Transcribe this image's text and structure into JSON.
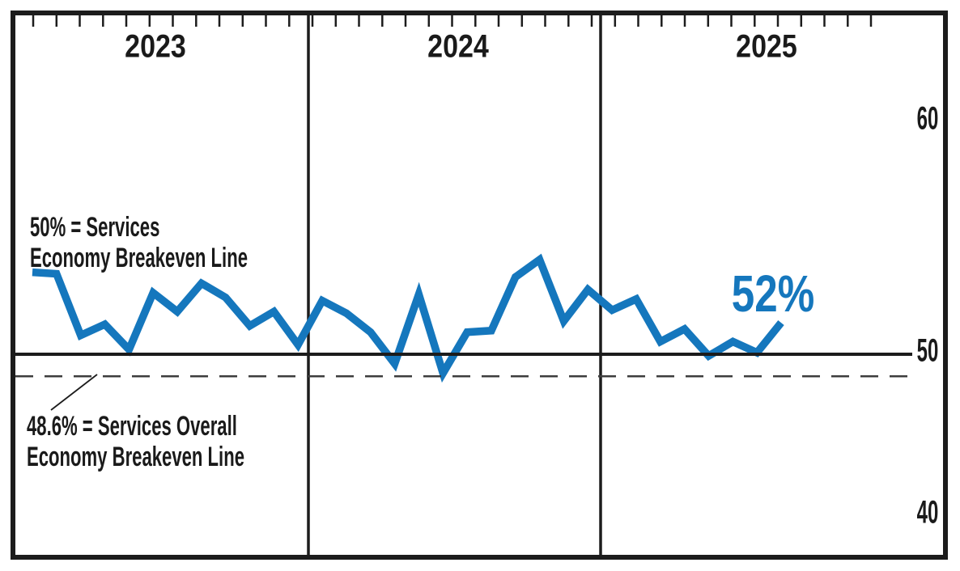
{
  "chart_data": {
    "type": "line",
    "title": "",
    "x": [
      "Jan 2023",
      "Feb 2023",
      "Mar 2023",
      "Apr 2023",
      "May 2023",
      "Jun 2023",
      "Jul 2023",
      "Aug 2023",
      "Sep 2023",
      "Oct 2023",
      "Nov 2023",
      "Dec 2023",
      "Jan 2024",
      "Feb 2024",
      "Mar 2024",
      "Apr 2024",
      "May 2024",
      "Jun 2024",
      "Jul 2024",
      "Aug 2024",
      "Sep 2024",
      "Oct 2024",
      "Nov 2024",
      "Dec 2024",
      "Jan 2025",
      "Feb 2025",
      "Mar 2025",
      "Apr 2025",
      "May 2025",
      "Jun 2025",
      "Jul 2025",
      "Aug 2025"
    ],
    "series": [
      {
        "name": "services-pmi",
        "values": [
          55.2,
          55.1,
          51.2,
          51.9,
          50.3,
          53.9,
          52.7,
          54.5,
          53.6,
          51.8,
          52.7,
          50.6,
          53.4,
          52.6,
          51.4,
          49.4,
          53.8,
          48.8,
          51.4,
          51.5,
          54.9,
          56.0,
          52.1,
          54.1,
          52.8,
          53.5,
          50.8,
          51.6,
          49.9,
          50.8,
          50.1,
          52.0
        ]
      }
    ],
    "year_labels": [
      "2023",
      "2024",
      "2025"
    ],
    "y_axis_labels": [
      "60",
      "50",
      "40"
    ],
    "ylim": [
      40,
      60
    ],
    "breakeven_services": 50,
    "breakeven_overall": 48.6,
    "last_value_label": "52%",
    "line_color": "#1577BD",
    "legend": "none",
    "grid": "year divider lines only, month tick marks along top"
  },
  "annotations": {
    "services_line1": "50% = Services",
    "services_line2": "Economy Breakeven Line",
    "overall_line1": "48.6% = Services Overall",
    "overall_line2": "Economy Breakeven Line",
    "current_value": "52%"
  }
}
